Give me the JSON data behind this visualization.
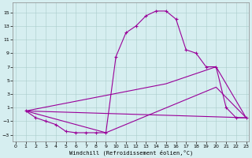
{
  "xlabel": "Windchill (Refroidissement éolien,°C)",
  "bg_color": "#d6eef0",
  "line_color": "#990099",
  "xlim": [
    -0.3,
    23.3
  ],
  "ylim": [
    -4.0,
    16.5
  ],
  "xticks": [
    0,
    1,
    2,
    3,
    4,
    5,
    6,
    7,
    8,
    9,
    10,
    11,
    12,
    13,
    14,
    15,
    16,
    17,
    18,
    19,
    20,
    21,
    22,
    23
  ],
  "yticks": [
    -3,
    -1,
    1,
    3,
    5,
    7,
    9,
    11,
    13,
    15
  ],
  "line1_x": [
    1,
    2,
    3,
    4,
    5,
    6,
    7,
    8,
    9,
    10,
    11,
    12,
    13,
    14,
    15,
    16,
    17,
    18,
    19,
    20,
    21,
    22,
    23
  ],
  "line1_y": [
    0.5,
    -0.5,
    -1.0,
    -1.5,
    -2.5,
    -2.7,
    -2.7,
    -2.7,
    -2.7,
    8.5,
    12.0,
    13.0,
    14.5,
    15.2,
    15.2,
    14.0,
    9.5,
    9.0,
    7.0,
    7.0,
    1.0,
    -0.5,
    -0.5
  ],
  "line2_x": [
    1,
    15,
    20,
    23
  ],
  "line2_y": [
    0.5,
    4.5,
    7.0,
    -0.5
  ],
  "line3_x": [
    1,
    9,
    20,
    23
  ],
  "line3_y": [
    0.5,
    -2.7,
    4.0,
    -0.5
  ],
  "line4_x": [
    1,
    23
  ],
  "line4_y": [
    0.5,
    -0.5
  ]
}
